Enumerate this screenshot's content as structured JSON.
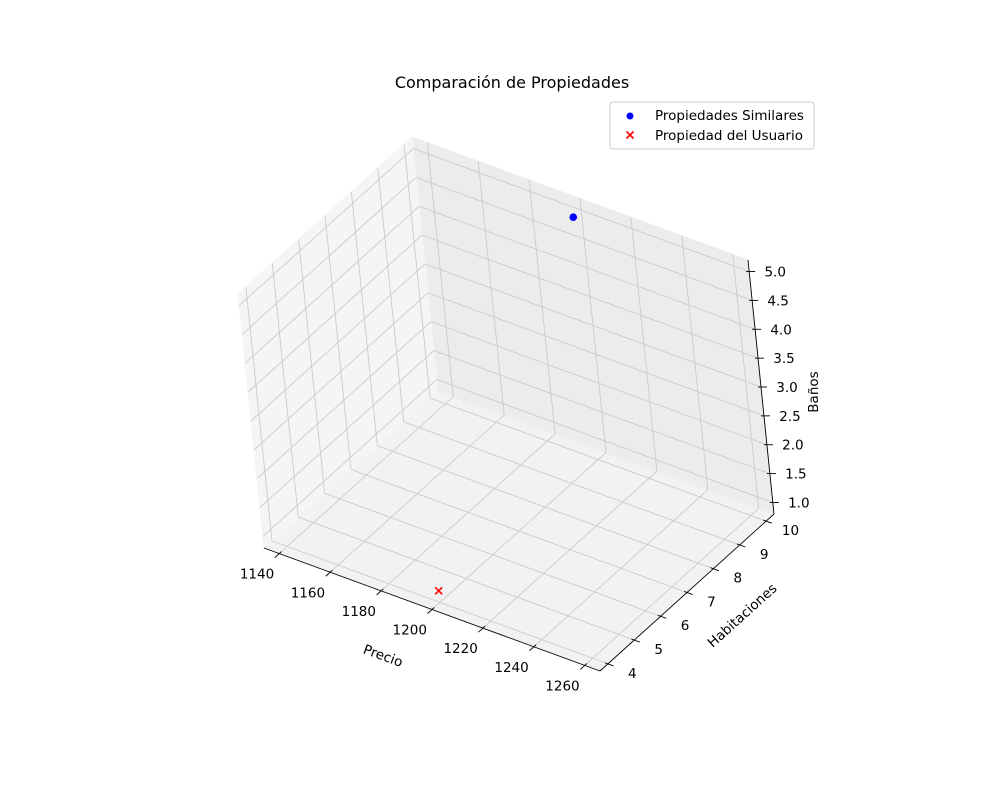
{
  "chart_data": {
    "type": "scatter3d",
    "title": "Comparación de Propiedades",
    "xlabel": "Precio",
    "ylabel": "Habitaciones",
    "zlabel": "Baños",
    "xlim": [
      1134,
      1266
    ],
    "ylim": [
      3.7,
      10.3
    ],
    "zlim": [
      0.8,
      5.2
    ],
    "x_ticks": [
      1140,
      1160,
      1180,
      1200,
      1220,
      1240,
      1260
    ],
    "y_ticks": [
      4,
      5,
      6,
      7,
      8,
      9,
      10
    ],
    "z_ticks": [
      "1.0",
      "1.5",
      "2.0",
      "2.5",
      "3.0",
      "3.5",
      "4.0",
      "4.5",
      "5.0"
    ],
    "grid": true,
    "legend_position": "top-right",
    "series": [
      {
        "name": "Propiedades Similares",
        "marker": "circle",
        "color": "#0000ff",
        "points": [
          {
            "x": 1200,
            "y": 10,
            "z": 5
          }
        ]
      },
      {
        "name": "Propiedad del Usuario",
        "marker": "x",
        "color": "#ff0000",
        "points": [
          {
            "x": 1200,
            "y": 4,
            "z": 1
          }
        ]
      }
    ]
  }
}
